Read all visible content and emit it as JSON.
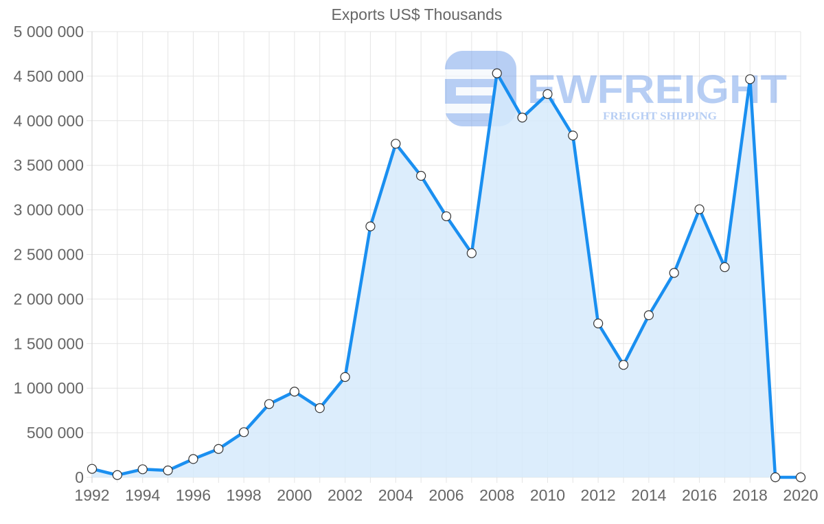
{
  "chart_data": {
    "type": "area",
    "title": "Exports US$ Thousands",
    "xlabel": "",
    "ylabel": "",
    "ylim": [
      0,
      5000000
    ],
    "xlim": [
      1992,
      2020
    ],
    "grid": true,
    "legend": "none",
    "y_ticks": [
      "0",
      "500 000",
      "1 000 000",
      "1 500 000",
      "2 000 000",
      "2 500 000",
      "3 000 000",
      "3 500 000",
      "4 000 000",
      "4 500 000",
      "5 000 000"
    ],
    "x_ticks": [
      "1992",
      "1994",
      "1996",
      "1998",
      "2000",
      "2002",
      "2004",
      "2006",
      "2008",
      "2010",
      "2012",
      "2014",
      "2016",
      "2018",
      "2020"
    ],
    "x": [
      1992,
      1993,
      1994,
      1995,
      1996,
      1997,
      1998,
      1999,
      2000,
      2001,
      2002,
      2003,
      2004,
      2005,
      2006,
      2007,
      2008,
      2009,
      2010,
      2011,
      2012,
      2013,
      2014,
      2015,
      2016,
      2017,
      2018,
      2019,
      2020
    ],
    "series": [
      {
        "name": "Exports US$ Thousands",
        "values": [
          95000,
          25000,
          90000,
          77000,
          205000,
          318000,
          506000,
          822000,
          961000,
          776000,
          1125000,
          2815000,
          3742000,
          3382000,
          2928000,
          2514000,
          4532000,
          4035000,
          4299000,
          3834000,
          1726000,
          1261000,
          1818000,
          2293000,
          3007000,
          2357000,
          4466000,
          0,
          0
        ]
      }
    ],
    "colors": {
      "line": "#1a8ff0",
      "fill": "#d6eafc",
      "point_fill": "#ffffff",
      "point_stroke": "#333333",
      "grid": "#e4e4e4",
      "text": "#666666"
    }
  },
  "watermark": {
    "brand": "EWFREIGHT",
    "tagline": "FREIGHT SHIPPING",
    "color": "#7ea7ec"
  }
}
